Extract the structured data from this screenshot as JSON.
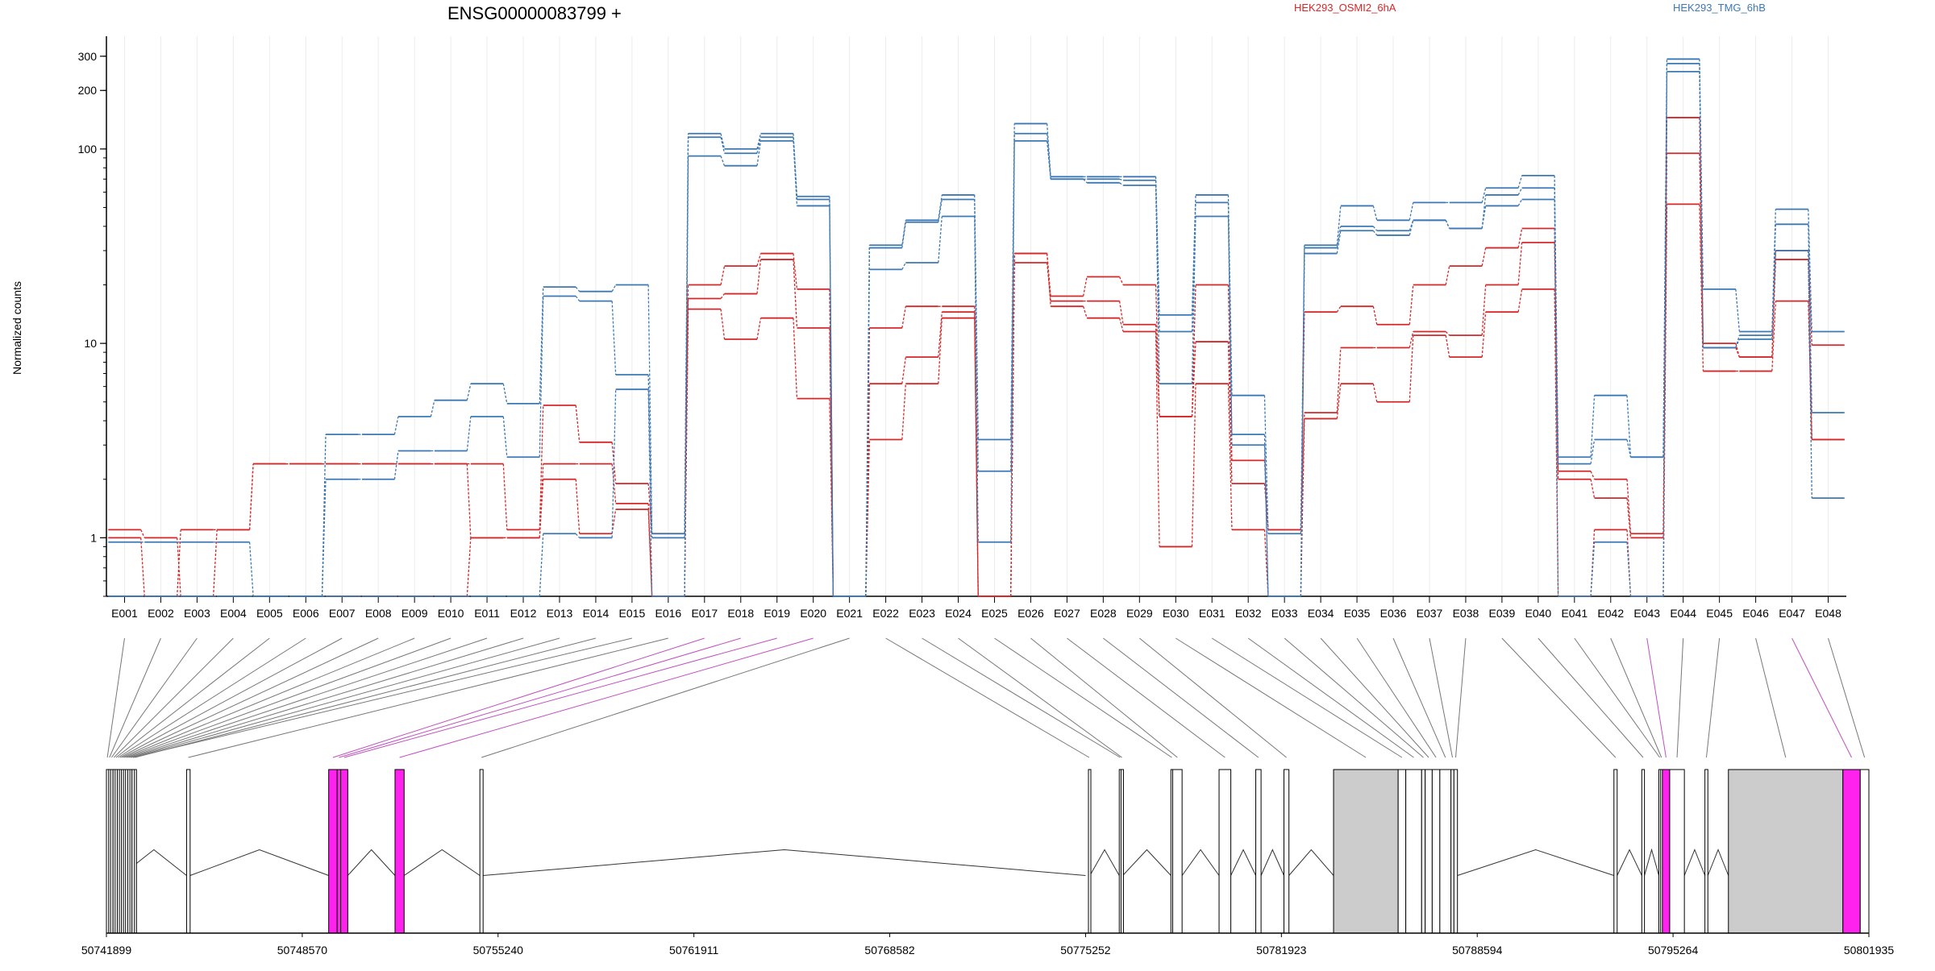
{
  "title": "ENSG00000083799 +",
  "legend": [
    {
      "label": "HEK293_OSMI2_6hA",
      "color": "#d62728"
    },
    {
      "label": "HEK293_TMG_6hB",
      "color": "#3c78b4"
    }
  ],
  "chart_data": {
    "type": "line",
    "title": "ENSG00000083799 +",
    "ylabel": "Normalized counts",
    "yscale": "log",
    "ylim": [
      0.5,
      380
    ],
    "ytick_labels": [
      "1",
      "10",
      "100",
      "200",
      "300"
    ],
    "yticks": [
      1,
      10,
      100,
      200,
      300
    ],
    "categories": [
      "E001",
      "E002",
      "E003",
      "E004",
      "E005",
      "E006",
      "E007",
      "E008",
      "E009",
      "E010",
      "E011",
      "E012",
      "E013",
      "E014",
      "E015",
      "E016",
      "E017",
      "E018",
      "E019",
      "E020",
      "E021",
      "E022",
      "E023",
      "E024",
      "E025",
      "E026",
      "E027",
      "E028",
      "E029",
      "E030",
      "E031",
      "E032",
      "E033",
      "E034",
      "E035",
      "E036",
      "E037",
      "E038",
      "E039",
      "E040",
      "E041",
      "E042",
      "E043",
      "E044",
      "E045",
      "E046",
      "E047",
      "E048"
    ],
    "series": [
      {
        "group": "HEK293_OSMI2_6hA",
        "color": "#d62728",
        "values": [
          1.1,
          1.0,
          0.5,
          1.1,
          2.4,
          2.4,
          2.4,
          2.4,
          2.4,
          2.4,
          2.4,
          1.1,
          4.8,
          3.1,
          1.9,
          1.05,
          20,
          25,
          29,
          19,
          0.5,
          12,
          15.5,
          15.5,
          0.5,
          29,
          17.5,
          22,
          20,
          4.2,
          20,
          2.5,
          1.1,
          14.5,
          15.5,
          12.5,
          20,
          25,
          31,
          39,
          2.2,
          2.0,
          1.05,
          145,
          10,
          8.5,
          30,
          9.8
        ]
      },
      {
        "group": "HEK293_OSMI2_6hA",
        "color": "#d62728",
        "values": [
          1.0,
          0.5,
          1.1,
          1.1,
          2.4,
          2.4,
          2.4,
          2.4,
          2.4,
          2.4,
          1.0,
          1.0,
          2.4,
          2.4,
          1.5,
          0.5,
          17,
          18,
          27,
          12,
          0.5,
          6.2,
          8.5,
          14.5,
          0.5,
          26,
          16.5,
          16.5,
          12.5,
          4.2,
          10.2,
          1.9,
          1.1,
          4.4,
          9.5,
          9.5,
          11.5,
          11,
          20,
          33,
          2.0,
          1.6,
          1.0,
          95,
          9.5,
          8.5,
          27,
          3.2
        ]
      },
      {
        "group": "HEK293_OSMI2_6hA",
        "color": "#d62728",
        "values": [
          0.5,
          0.5,
          0.5,
          0.5,
          0.5,
          0.5,
          0.5,
          0.5,
          0.5,
          0.5,
          1.0,
          1.0,
          2.0,
          1.05,
          1.4,
          0.5,
          15,
          10.5,
          13.5,
          5.2,
          0.5,
          3.2,
          6.2,
          13.5,
          0.5,
          29,
          15.5,
          13.5,
          11.5,
          0.9,
          6.2,
          1.1,
          0.5,
          4.1,
          6.2,
          5,
          11,
          8.5,
          14.5,
          19,
          0.5,
          1.1,
          0.5,
          52,
          7.2,
          7.2,
          16.5,
          3.2
        ]
      },
      {
        "group": "HEK293_TMG_6hB",
        "color": "#3c78b4",
        "values": [
          0.95,
          0.95,
          0.95,
          0.95,
          0.5,
          0.5,
          3.4,
          3.4,
          4.2,
          5.1,
          6.2,
          4.9,
          19.5,
          18.5,
          20,
          1.05,
          120,
          100,
          120,
          57,
          0.5,
          32,
          43,
          58,
          3.2,
          135,
          72,
          72,
          72,
          14,
          58,
          5.4,
          1.05,
          32,
          51,
          43,
          53,
          53,
          63,
          73,
          2.6,
          5.4,
          2.6,
          290,
          19,
          11.5,
          49,
          11.5
        ]
      },
      {
        "group": "HEK293_TMG_6hB",
        "color": "#3c78b4",
        "values": [
          0.5,
          0.5,
          0.5,
          0.5,
          0.5,
          0.5,
          2.0,
          2.0,
          2.8,
          2.8,
          4.2,
          2.6,
          17.5,
          16.5,
          6.9,
          1.0,
          115,
          95,
          115,
          55,
          0.5,
          31,
          42,
          55,
          2.2,
          120,
          70,
          70,
          69,
          11.5,
          53,
          3.4,
          0.5,
          31,
          40,
          38,
          43,
          39,
          58,
          63,
          2.4,
          3.2,
          2.6,
          275,
          9.5,
          11,
          41,
          4.4
        ]
      },
      {
        "group": "HEK293_TMG_6hB",
        "color": "#3c78b4",
        "values": [
          0.5,
          0.5,
          0.5,
          0.5,
          0.5,
          0.5,
          0.5,
          0.5,
          0.5,
          0.5,
          0.5,
          0.5,
          1.05,
          1.0,
          5.8,
          0.5,
          92,
          82,
          110,
          51,
          0.5,
          24,
          26,
          45,
          0.95,
          110,
          70,
          67,
          65,
          6.2,
          45,
          3.0,
          0.5,
          29,
          38,
          36,
          43,
          39,
          51,
          55,
          0.5,
          0.95,
          0.5,
          250,
          9.5,
          10.5,
          30,
          1.6
        ]
      }
    ],
    "genomic_axis": {
      "tick_labels": [
        "50741899",
        "50748570",
        "50755240",
        "50761911",
        "50768582",
        "50775252",
        "50781923",
        "50788594",
        "50795264",
        "50801935"
      ],
      "ticks": [
        50741899,
        50748570,
        50755240,
        50761911,
        50768582,
        50775252,
        50781923,
        50788594,
        50795264,
        50801935
      ]
    },
    "exons": [
      {
        "id": "E001",
        "start": 50741899,
        "end": 50741960,
        "highlight": false
      },
      {
        "id": "E002",
        "start": 50741975,
        "end": 50742030,
        "highlight": false
      },
      {
        "id": "E003",
        "start": 50742040,
        "end": 50742110,
        "highlight": false
      },
      {
        "id": "E004",
        "start": 50742125,
        "end": 50742185,
        "highlight": false
      },
      {
        "id": "E005",
        "start": 50742195,
        "end": 50742260,
        "highlight": false
      },
      {
        "id": "E006",
        "start": 50742270,
        "end": 50742330,
        "highlight": false
      },
      {
        "id": "E007",
        "start": 50742340,
        "end": 50742400,
        "highlight": false
      },
      {
        "id": "E008",
        "start": 50742410,
        "end": 50742470,
        "highlight": false
      },
      {
        "id": "E009",
        "start": 50742480,
        "end": 50742540,
        "highlight": false
      },
      {
        "id": "E010",
        "start": 50742550,
        "end": 50742615,
        "highlight": false
      },
      {
        "id": "E011",
        "start": 50742625,
        "end": 50742690,
        "highlight": false
      },
      {
        "id": "E012",
        "start": 50742700,
        "end": 50742760,
        "highlight": false
      },
      {
        "id": "E013",
        "start": 50742770,
        "end": 50742830,
        "highlight": false
      },
      {
        "id": "E014",
        "start": 50742840,
        "end": 50742900,
        "highlight": false
      },
      {
        "id": "E015",
        "start": 50742770,
        "end": 50742840,
        "highlight": false
      },
      {
        "id": "E016",
        "start": 50744630,
        "end": 50744750,
        "highlight": false
      },
      {
        "id": "E017",
        "start": 50749470,
        "end": 50749760,
        "highlight": true
      },
      {
        "id": "E018",
        "start": 50749760,
        "end": 50749880,
        "highlight": true
      },
      {
        "id": "E019",
        "start": 50749880,
        "end": 50750120,
        "highlight": true
      },
      {
        "id": "E020",
        "start": 50751730,
        "end": 50752040,
        "highlight": true
      },
      {
        "id": "E021",
        "start": 50754620,
        "end": 50754730,
        "highlight": false
      },
      {
        "id": "E022",
        "start": 50775350,
        "end": 50775400,
        "highlight": false
      },
      {
        "id": "E023",
        "start": 50776400,
        "end": 50776460,
        "highlight": false
      },
      {
        "id": "E024",
        "start": 50776460,
        "end": 50776520,
        "highlight": false
      },
      {
        "id": "E025",
        "start": 50778160,
        "end": 50778220,
        "highlight": false
      },
      {
        "id": "E026",
        "start": 50778220,
        "end": 50778540,
        "highlight": false
      },
      {
        "id": "E027",
        "start": 50779800,
        "end": 50780200,
        "highlight": false
      },
      {
        "id": "E028",
        "start": 50781050,
        "end": 50781230,
        "highlight": false
      },
      {
        "id": "E029",
        "start": 50782010,
        "end": 50782180,
        "highlight": false
      },
      {
        "id": "E030",
        "start": 50783700,
        "end": 50785900,
        "highlight": false
      },
      {
        "id": "E031",
        "start": 50785900,
        "end": 50786160,
        "highlight": false
      },
      {
        "id": "E032",
        "start": 50786160,
        "end": 50786700,
        "highlight": false
      },
      {
        "id": "E033",
        "start": 50786700,
        "end": 50786820,
        "highlight": false
      },
      {
        "id": "E034",
        "start": 50786820,
        "end": 50787060,
        "highlight": false
      },
      {
        "id": "E035",
        "start": 50787060,
        "end": 50787320,
        "highlight": false
      },
      {
        "id": "E036",
        "start": 50787320,
        "end": 50787700,
        "highlight": false
      },
      {
        "id": "E037",
        "start": 50787700,
        "end": 50787800,
        "highlight": false
      },
      {
        "id": "E038",
        "start": 50787800,
        "end": 50787920,
        "highlight": false
      },
      {
        "id": "E039",
        "start": 50793250,
        "end": 50793360,
        "highlight": false
      },
      {
        "id": "E040",
        "start": 50794200,
        "end": 50794290,
        "highlight": false
      },
      {
        "id": "E041",
        "start": 50794780,
        "end": 50794840,
        "highlight": false
      },
      {
        "id": "E042",
        "start": 50794840,
        "end": 50794900,
        "highlight": false
      },
      {
        "id": "E043",
        "start": 50794900,
        "end": 50795150,
        "highlight": true
      },
      {
        "id": "E044",
        "start": 50795150,
        "end": 50795650,
        "highlight": false
      },
      {
        "id": "E045",
        "start": 50796350,
        "end": 50796450,
        "highlight": false
      },
      {
        "id": "E046",
        "start": 50797150,
        "end": 50801050,
        "highlight": false
      },
      {
        "id": "E047",
        "start": 50801050,
        "end": 50801640,
        "highlight": true
      },
      {
        "id": "E048",
        "start": 50801640,
        "end": 50801935,
        "highlight": false
      }
    ],
    "introns": [
      [
        50742000,
        50742400
      ],
      [
        50742400,
        50744630
      ],
      [
        50744750,
        50749470
      ],
      [
        50750120,
        50751730
      ],
      [
        50752040,
        50754620
      ],
      [
        50754730,
        50775250
      ],
      [
        50775400,
        50776400
      ],
      [
        50776520,
        50778160
      ],
      [
        50778540,
        50779800
      ],
      [
        50780200,
        50781050
      ],
      [
        50781230,
        50782010
      ],
      [
        50782180,
        50783700
      ],
      [
        50787920,
        50793250
      ],
      [
        50793360,
        50794200
      ],
      [
        50794290,
        50794780
      ],
      [
        50795650,
        50796350
      ],
      [
        50796450,
        50797150
      ]
    ],
    "grid": "vertical",
    "legend_position": "top"
  }
}
